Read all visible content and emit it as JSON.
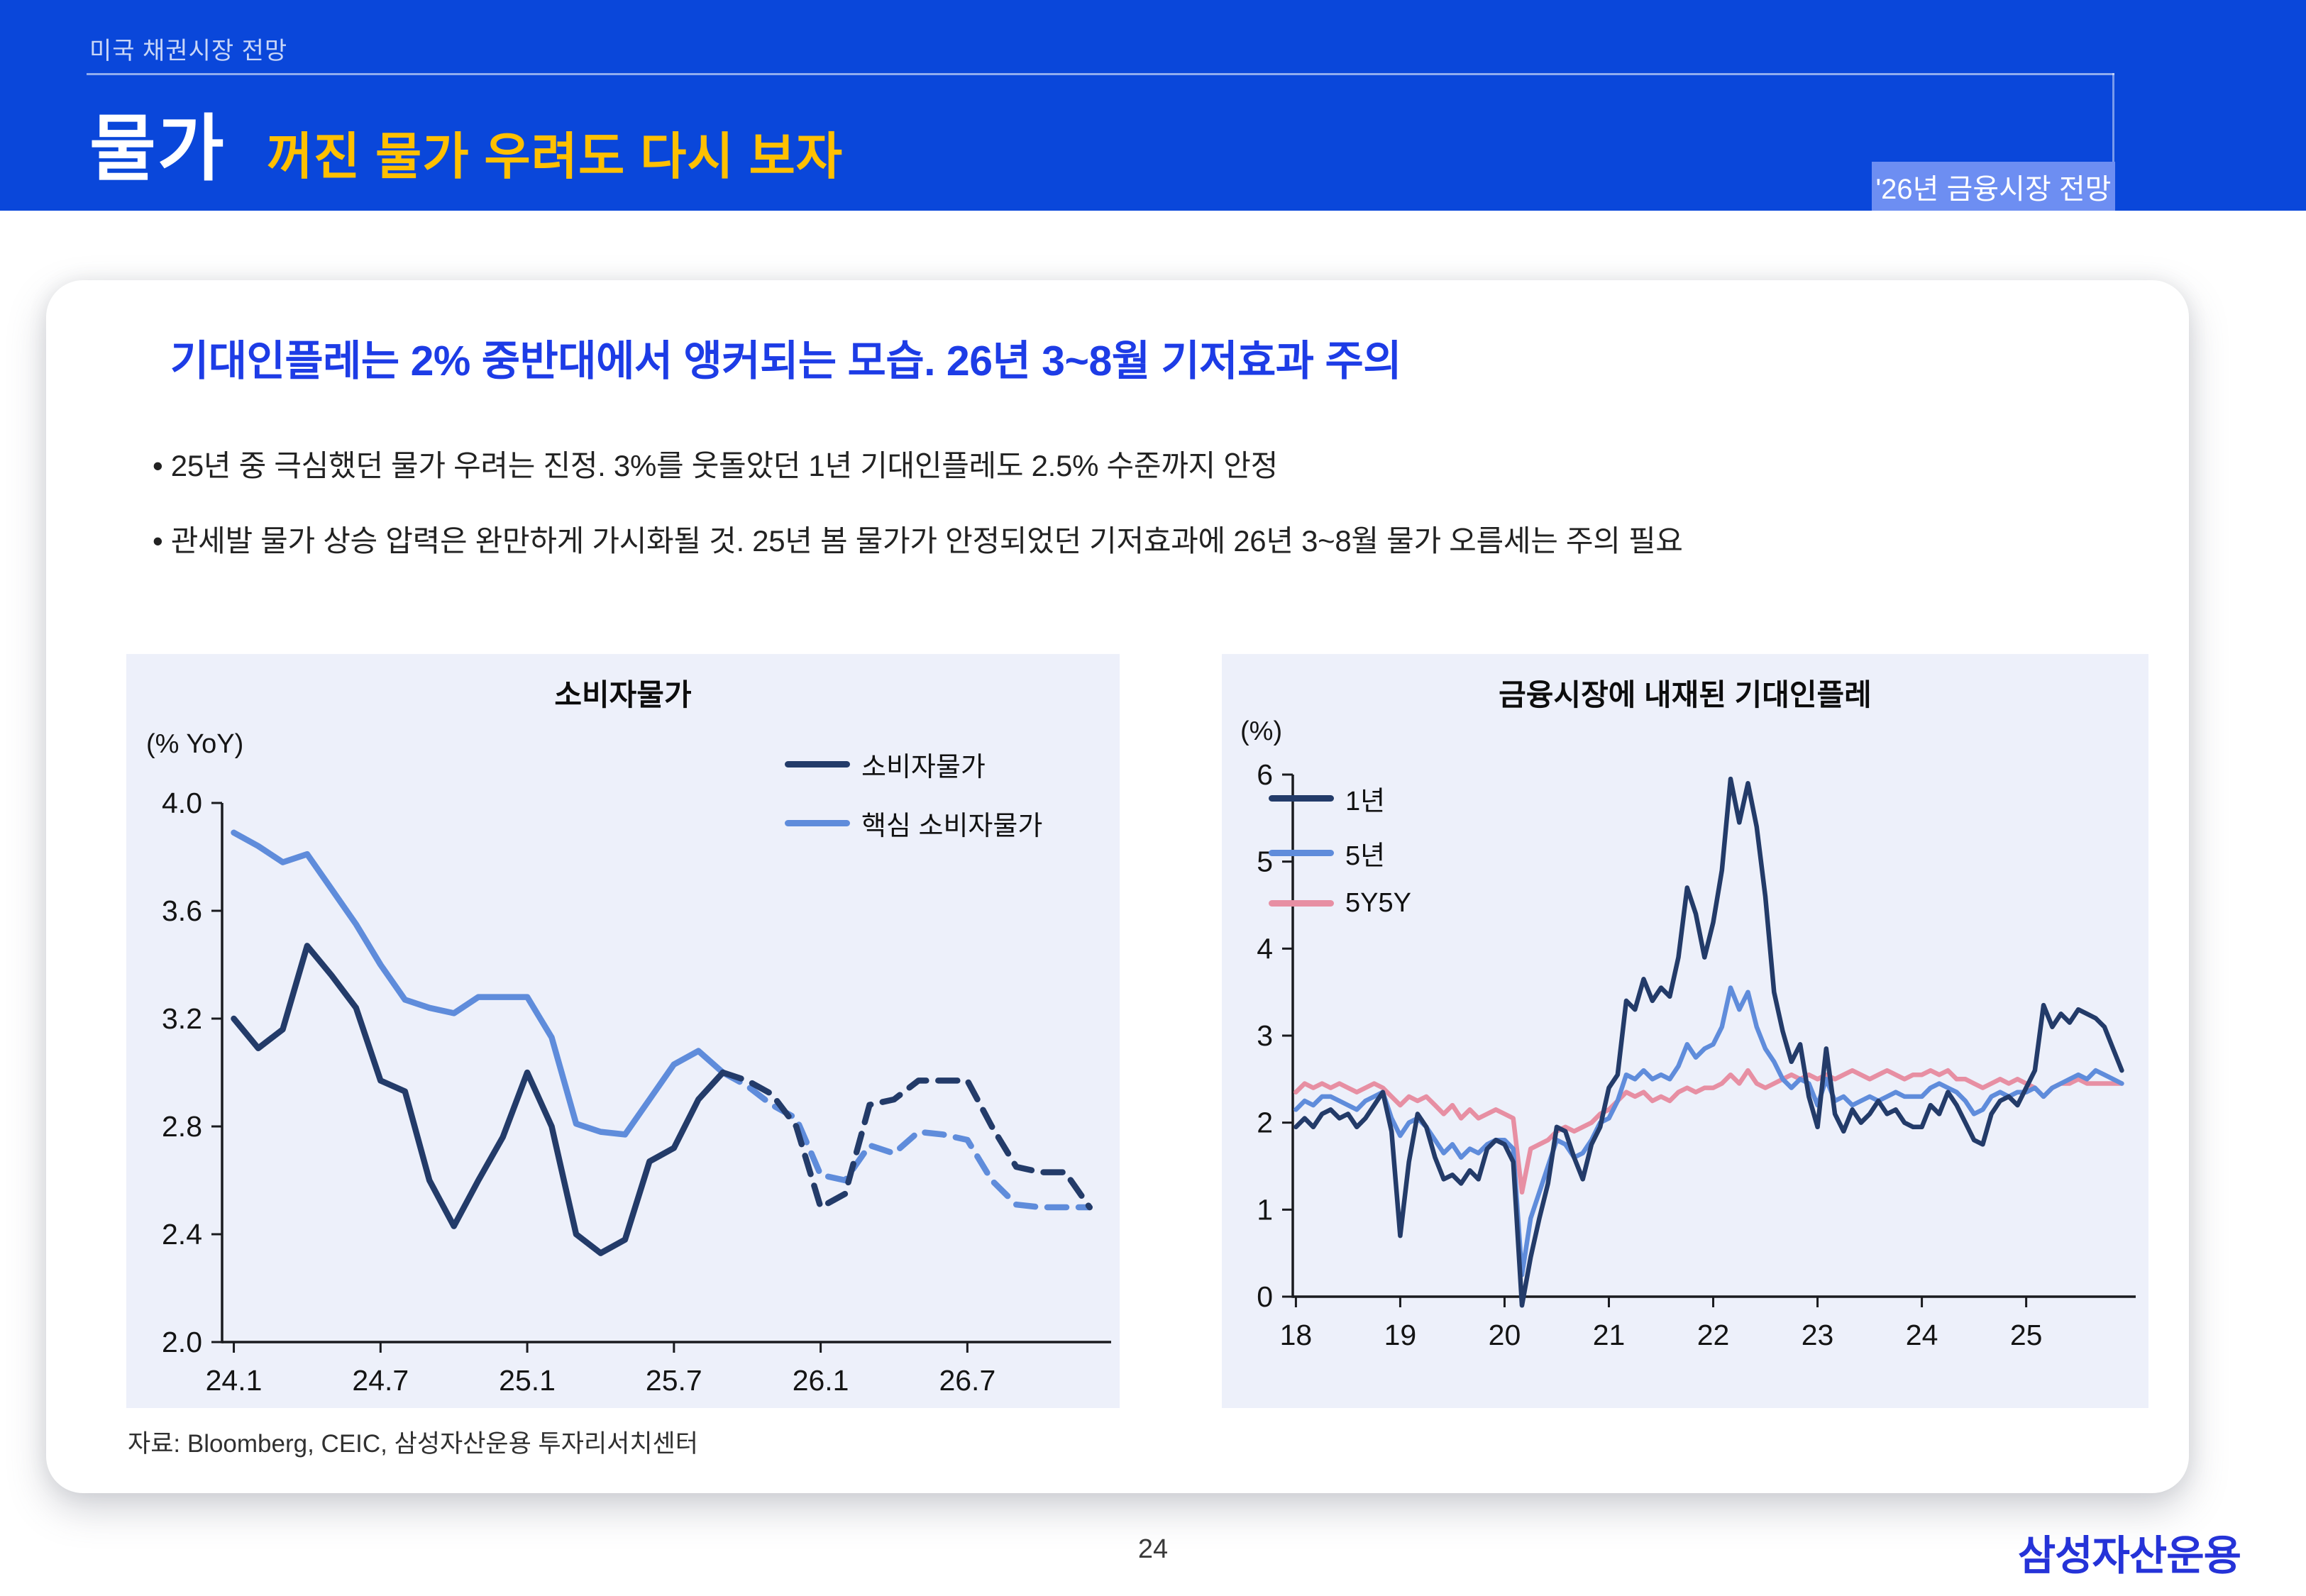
{
  "header": {
    "breadcrumb": "미국 채권시장 전망",
    "section": "물가",
    "title": "꺼진 물가 우려도 다시 보자",
    "badge": "'26년 금융시장 전망",
    "colors": {
      "bg": "#0a47da",
      "accent_yellow": "#ffc000",
      "badge_bg": "#6d8ef2"
    }
  },
  "card": {
    "headline": "기대인플레는 2% 중반대에서 앵커되는 모습. 26년 3~8월 기저효과 주의",
    "headline_color": "#1d3ce6",
    "bullets": [
      "• 25년 중 극심했던 물가 우려는 진정. 3%를 웃돌았던 1년 기대인플레도 2.5% 수준까지 안정",
      "• 관세발 물가 상승 압력은 완만하게 가시화될 것. 25년 봄 물가가 안정되었던 기저효과에 26년 3~8월 물가 오름세는 주의 필요"
    ],
    "source": "자료: Bloomberg, CEIC, 삼성자산운용 투자리서치센터"
  },
  "footer": {
    "page_number": "24",
    "logo": "삼성자산운용",
    "logo_color": "#2533d8"
  },
  "chart_data": [
    {
      "type": "line",
      "title": "소비자물가",
      "unit_label": "(% YoY)",
      "ylim": [
        2.0,
        4.0
      ],
      "xlim": [
        2023.96,
        2026.99
      ],
      "grid": false,
      "legend_position": "top-right",
      "yticks": [
        {
          "v": 2.0,
          "label": "2.0"
        },
        {
          "v": 2.4,
          "label": "2.4"
        },
        {
          "v": 2.8,
          "label": "2.8"
        },
        {
          "v": 3.2,
          "label": "3.2"
        },
        {
          "v": 3.6,
          "label": "3.6"
        },
        {
          "v": 4.0,
          "label": "4.0"
        }
      ],
      "xticks": [
        {
          "v": 2024.0,
          "label": "24.1"
        },
        {
          "v": 2024.5,
          "label": "24.7"
        },
        {
          "v": 2025.0,
          "label": "25.1"
        },
        {
          "v": 2025.5,
          "label": "25.7"
        },
        {
          "v": 2026.0,
          "label": "26.1"
        },
        {
          "v": 2026.5,
          "label": "26.7"
        }
      ],
      "legend": [
        {
          "name": "소비자물가",
          "color": "#233b69"
        },
        {
          "name": "핵심 소비자물가",
          "color": "#5f8cdb"
        }
      ],
      "series": [
        {
          "name": "핵심 소비자물가 (실적)",
          "color": "#5f8cdb",
          "dash": false,
          "x0": 2024.0,
          "step": 0.0833333,
          "values": [
            3.89,
            3.84,
            3.78,
            3.81,
            3.68,
            3.55,
            3.4,
            3.27,
            3.24,
            3.22,
            3.28,
            3.28,
            3.28,
            3.13,
            2.81,
            2.78,
            2.77,
            2.9,
            3.03,
            3.08,
            3.0
          ]
        },
        {
          "name": "핵심 소비자물가 (전망)",
          "color": "#5f8cdb",
          "dash": true,
          "x0": 2025.6667,
          "step": 0.0833333,
          "values": [
            3.0,
            2.95,
            2.88,
            2.83,
            2.62,
            2.6,
            2.73,
            2.7,
            2.78,
            2.77,
            2.75,
            2.6,
            2.51,
            2.5,
            2.5,
            2.5
          ]
        },
        {
          "name": "소비자물가 (실적)",
          "color": "#233b69",
          "dash": false,
          "x0": 2024.0,
          "step": 0.0833333,
          "values": [
            3.2,
            3.09,
            3.16,
            3.47,
            3.36,
            3.24,
            2.97,
            2.93,
            2.6,
            2.43,
            2.6,
            2.76,
            3.0,
            2.8,
            2.4,
            2.33,
            2.38,
            2.67,
            2.72,
            2.9,
            3.0
          ]
        },
        {
          "name": "소비자물가 (전망)",
          "color": "#233b69",
          "dash": true,
          "x0": 2025.6667,
          "step": 0.0833333,
          "values": [
            3.0,
            2.97,
            2.92,
            2.8,
            2.5,
            2.55,
            2.88,
            2.9,
            2.97,
            2.97,
            2.97,
            2.8,
            2.65,
            2.63,
            2.63,
            2.5
          ]
        }
      ]
    },
    {
      "type": "line",
      "title": "금융시장에 내재된 기대인플레",
      "unit_label": "(%)",
      "ylim": [
        0,
        6
      ],
      "xlim": [
        2017.97,
        2026.05
      ],
      "grid": false,
      "legend_position": "top-left",
      "yticks": [
        {
          "v": 0,
          "label": "0"
        },
        {
          "v": 1,
          "label": "1"
        },
        {
          "v": 2,
          "label": "2"
        },
        {
          "v": 3,
          "label": "3"
        },
        {
          "v": 4,
          "label": "4"
        },
        {
          "v": 5,
          "label": "5"
        },
        {
          "v": 6,
          "label": "6"
        }
      ],
      "xticks": [
        {
          "v": 2018,
          "label": "18"
        },
        {
          "v": 2019,
          "label": "19"
        },
        {
          "v": 2020,
          "label": "20"
        },
        {
          "v": 2021,
          "label": "21"
        },
        {
          "v": 2022,
          "label": "22"
        },
        {
          "v": 2023,
          "label": "23"
        },
        {
          "v": 2024,
          "label": "24"
        },
        {
          "v": 2025,
          "label": "25"
        }
      ],
      "legend": [
        {
          "name": "1년",
          "color": "#233b69"
        },
        {
          "name": "5년",
          "color": "#5f8cdb"
        },
        {
          "name": "5Y5Y",
          "color": "#e78fa3"
        }
      ],
      "series": [
        {
          "name": "5Y5Y",
          "color": "#e78fa3",
          "dash": false,
          "x0": 2018.0,
          "step": 0.0833333,
          "values": [
            2.35,
            2.45,
            2.4,
            2.45,
            2.4,
            2.45,
            2.4,
            2.35,
            2.4,
            2.45,
            2.4,
            2.3,
            2.2,
            2.3,
            2.25,
            2.3,
            2.2,
            2.1,
            2.2,
            2.05,
            2.15,
            2.05,
            2.1,
            2.15,
            2.1,
            2.05,
            1.2,
            1.7,
            1.75,
            1.8,
            1.9,
            1.95,
            1.9,
            1.95,
            2.0,
            2.1,
            2.15,
            2.25,
            2.35,
            2.3,
            2.35,
            2.25,
            2.3,
            2.25,
            2.35,
            2.4,
            2.35,
            2.4,
            2.4,
            2.45,
            2.55,
            2.45,
            2.6,
            2.45,
            2.4,
            2.45,
            2.5,
            2.55,
            2.5,
            2.55,
            2.5,
            2.55,
            2.5,
            2.55,
            2.6,
            2.55,
            2.5,
            2.55,
            2.6,
            2.55,
            2.5,
            2.55,
            2.55,
            2.6,
            2.55,
            2.6,
            2.5,
            2.5,
            2.45,
            2.4,
            2.45,
            2.5,
            2.45,
            2.5,
            2.45,
            2.4,
            2.3,
            2.4,
            2.45,
            2.45,
            2.5,
            2.45,
            2.45,
            2.45,
            2.45,
            2.45
          ]
        },
        {
          "name": "5년",
          "color": "#5f8cdb",
          "dash": false,
          "x0": 2018.0,
          "step": 0.0833333,
          "values": [
            2.15,
            2.25,
            2.2,
            2.3,
            2.3,
            2.25,
            2.2,
            2.15,
            2.25,
            2.3,
            2.35,
            2.05,
            1.85,
            2.0,
            2.05,
            1.95,
            1.8,
            1.65,
            1.75,
            1.6,
            1.7,
            1.65,
            1.75,
            1.8,
            1.8,
            1.7,
            0.25,
            0.9,
            1.2,
            1.5,
            1.8,
            1.75,
            1.6,
            1.65,
            1.8,
            2.0,
            2.05,
            2.25,
            2.55,
            2.5,
            2.6,
            2.5,
            2.55,
            2.5,
            2.65,
            2.9,
            2.75,
            2.85,
            2.9,
            3.1,
            3.55,
            3.3,
            3.5,
            3.1,
            2.85,
            2.7,
            2.5,
            2.4,
            2.5,
            2.45,
            2.2,
            2.5,
            2.25,
            2.3,
            2.2,
            2.25,
            2.3,
            2.25,
            2.3,
            2.35,
            2.3,
            2.3,
            2.3,
            2.4,
            2.45,
            2.4,
            2.35,
            2.25,
            2.1,
            2.15,
            2.3,
            2.35,
            2.3,
            2.35,
            2.35,
            2.4,
            2.3,
            2.4,
            2.45,
            2.5,
            2.55,
            2.5,
            2.6,
            2.55,
            2.5,
            2.45
          ]
        },
        {
          "name": "1년",
          "color": "#233b69",
          "dash": false,
          "x0": 2018.0,
          "step": 0.0833333,
          "values": [
            1.95,
            2.05,
            1.95,
            2.1,
            2.15,
            2.05,
            2.1,
            1.95,
            2.05,
            2.2,
            2.35,
            1.9,
            0.7,
            1.55,
            2.1,
            1.95,
            1.6,
            1.35,
            1.4,
            1.3,
            1.45,
            1.35,
            1.7,
            1.8,
            1.75,
            1.55,
            -0.1,
            0.45,
            0.9,
            1.3,
            1.95,
            1.9,
            1.6,
            1.35,
            1.75,
            1.95,
            2.4,
            2.55,
            3.4,
            3.3,
            3.65,
            3.4,
            3.55,
            3.45,
            3.9,
            4.7,
            4.4,
            3.9,
            4.3,
            4.9,
            5.95,
            5.45,
            5.9,
            5.4,
            4.6,
            3.5,
            3.05,
            2.7,
            2.9,
            2.3,
            1.95,
            2.85,
            2.1,
            1.9,
            2.15,
            2.0,
            2.1,
            2.25,
            2.1,
            2.15,
            2.0,
            1.95,
            1.95,
            2.2,
            2.1,
            2.35,
            2.2,
            2.0,
            1.8,
            1.75,
            2.1,
            2.25,
            2.3,
            2.2,
            2.4,
            2.6,
            3.35,
            3.1,
            3.25,
            3.15,
            3.3,
            3.25,
            3.2,
            3.1,
            2.85,
            2.6
          ]
        }
      ]
    }
  ]
}
